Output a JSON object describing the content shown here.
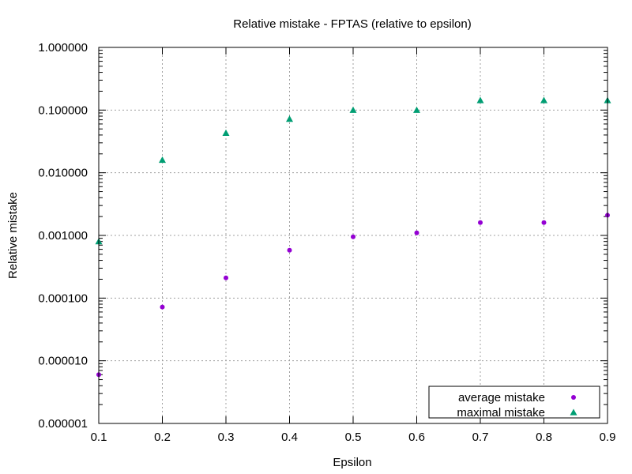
{
  "chart_data": {
    "type": "scatter",
    "title": "Relative mistake - FPTAS (relative to epsilon)",
    "xlabel": "Epsilon",
    "ylabel": "Relative mistake",
    "xlim": [
      0.1,
      0.9
    ],
    "ylim": [
      1e-06,
      1.0
    ],
    "yscale": "log",
    "grid": true,
    "legend_position": "bottom-right",
    "x_ticks": [
      {
        "value": 0.1,
        "label": "0.1"
      },
      {
        "value": 0.2,
        "label": "0.2"
      },
      {
        "value": 0.3,
        "label": "0.3"
      },
      {
        "value": 0.4,
        "label": "0.4"
      },
      {
        "value": 0.5,
        "label": "0.5"
      },
      {
        "value": 0.6,
        "label": "0.6"
      },
      {
        "value": 0.7,
        "label": "0.7"
      },
      {
        "value": 0.8,
        "label": "0.8"
      },
      {
        "value": 0.9,
        "label": "0.9"
      }
    ],
    "y_ticks": [
      {
        "value": 1.0,
        "label": "1.000000"
      },
      {
        "value": 0.1,
        "label": "0.100000"
      },
      {
        "value": 0.01,
        "label": "0.010000"
      },
      {
        "value": 0.001,
        "label": "0.001000"
      },
      {
        "value": 0.0001,
        "label": "0.000100"
      },
      {
        "value": 1e-05,
        "label": "0.000010"
      },
      {
        "value": 1e-06,
        "label": "0.000001"
      }
    ],
    "series": [
      {
        "name": "average mistake",
        "marker": "circle",
        "color": "#9400d3",
        "x": [
          0.1,
          0.2,
          0.3,
          0.4,
          0.5,
          0.6,
          0.7,
          0.8,
          0.9
        ],
        "y": [
          6e-06,
          7.2e-05,
          0.00021,
          0.00058,
          0.00095,
          0.0011,
          0.0016,
          0.0016,
          0.0021
        ]
      },
      {
        "name": "maximal mistake",
        "marker": "triangle",
        "color": "#009e73",
        "x": [
          0.1,
          0.2,
          0.3,
          0.4,
          0.5,
          0.6,
          0.7,
          0.8,
          0.9
        ],
        "y": [
          0.0008,
          0.016,
          0.043,
          0.072,
          0.1,
          0.1,
          0.143,
          0.143,
          0.143
        ]
      }
    ]
  }
}
